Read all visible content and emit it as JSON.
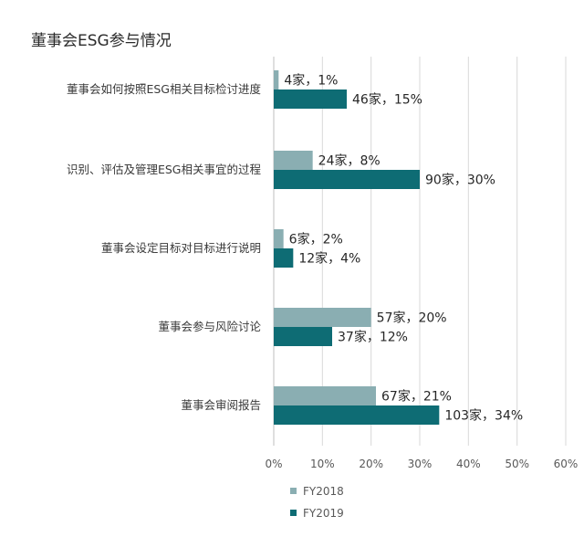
{
  "title": "董事会ESG参与情况",
  "chart_data": {
    "type": "bar",
    "orientation": "horizontal",
    "title": "董事会ESG参与情况",
    "categories": [
      "董事会如何按照ESG相关目标检讨进度",
      "识别、评估及管理ESG相关事宜的过程",
      "董事会设定目标对目标进行说明",
      "董事会参与风险讨论",
      "董事会审阅报告"
    ],
    "series": [
      {
        "name": "FY2018",
        "color": "#8aaeb2",
        "values": [
          1,
          8,
          2,
          20,
          21
        ],
        "labels": [
          "4家，1%",
          "24家，8%",
          "6家，2%",
          "57家，20%",
          "67家，21%"
        ]
      },
      {
        "name": "FY2019",
        "color": "#0e6c74",
        "values": [
          15,
          30,
          4,
          12,
          34
        ],
        "labels": [
          "46家，15%",
          "90家，30%",
          "12家，4%",
          "37家，12%",
          "103家，34%"
        ]
      }
    ],
    "xlim": [
      0,
      60
    ],
    "xticks": [
      "0%",
      "10%",
      "20%",
      "30%",
      "40%",
      "50%",
      "60%"
    ],
    "grid": "vertical",
    "legend": "bottom"
  }
}
